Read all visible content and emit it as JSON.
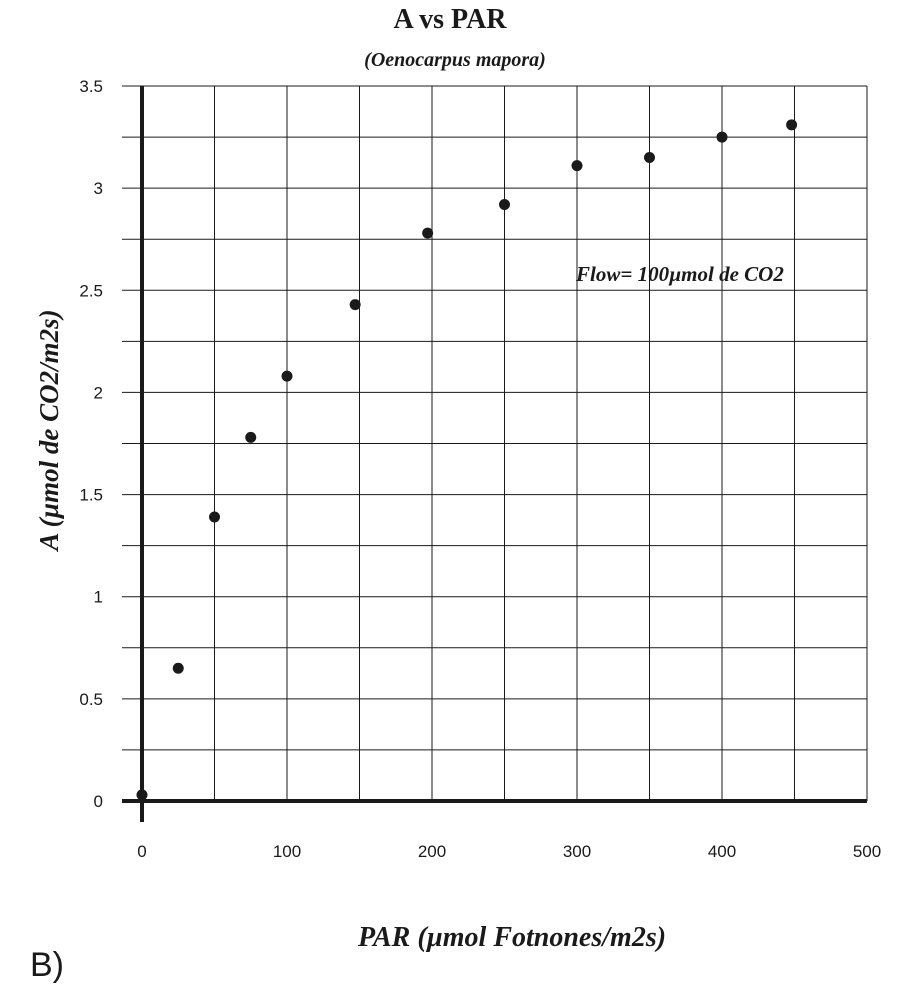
{
  "chart_data": {
    "type": "scatter",
    "title": "A vs PAR",
    "subtitle": "(Oenocarpus mapora)",
    "xlabel": "PAR (µmol Fotnones/m2s)",
    "ylabel": "A (µmol de CO2/m2s)",
    "xlim": [
      0,
      500
    ],
    "ylim": [
      0,
      3.5
    ],
    "x_ticks": [
      "0",
      "100",
      "200",
      "300",
      "400",
      "500"
    ],
    "y_ticks": [
      "0",
      "0.5",
      "1",
      "1.5",
      "2",
      "2.5",
      "3",
      "3.5"
    ],
    "grid": true,
    "annotation": "Flow= 100µmol de CO2",
    "panel_label": "B)",
    "points": [
      {
        "x": 0,
        "y": 0.03
      },
      {
        "x": 25,
        "y": 0.65
      },
      {
        "x": 50,
        "y": 1.39
      },
      {
        "x": 75,
        "y": 1.78
      },
      {
        "x": 100,
        "y": 2.08
      },
      {
        "x": 147,
        "y": 2.43
      },
      {
        "x": 197,
        "y": 2.78
      },
      {
        "x": 250,
        "y": 2.92
      },
      {
        "x": 300,
        "y": 3.11
      },
      {
        "x": 350,
        "y": 3.15
      },
      {
        "x": 400,
        "y": 3.25
      },
      {
        "x": 448,
        "y": 3.31
      }
    ],
    "colors": {
      "points": "#1a1a1a",
      "axis": "#1a1a1a",
      "grid": "#1a1a1a"
    }
  }
}
